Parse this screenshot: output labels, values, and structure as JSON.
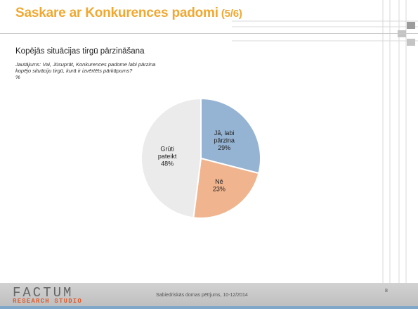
{
  "slide": {
    "title": "Saskare ar Konkurences padomi",
    "title_part": "(5/6)",
    "section_title": "Kopējās situācijas tirgū pārzināšana",
    "question": "Jautājums: Vai, Jūsuprāt, Konkurences padome labi pārzina kopējo situāciju tirgū, kurā ir izvērtēts pārkāpums?",
    "unit": "%"
  },
  "footer": {
    "logo": "FACTUM",
    "logo_sub": "RESEARCH STUDIO",
    "text": "Sabiedriskās domas pētījums, 10-12/2014",
    "page": "8"
  },
  "colors": {
    "title": "#f0a830",
    "slice_yes": "#95b3d3",
    "slice_no": "#f0b48e",
    "slice_hard": "#ebebeb"
  },
  "chart_data": {
    "type": "pie",
    "slices": [
      {
        "label": [
          "Jā, labi",
          "pārzina"
        ],
        "value": 29,
        "color": "#95b3d3"
      },
      {
        "label": [
          "Nē"
        ],
        "value": 23,
        "color": "#f0b48e"
      },
      {
        "label": [
          "Grūti",
          "pateikt"
        ],
        "value": 48,
        "color": "#ebebeb"
      }
    ],
    "start_angle_deg": 0,
    "direction": "clockwise",
    "value_suffix": "%"
  }
}
